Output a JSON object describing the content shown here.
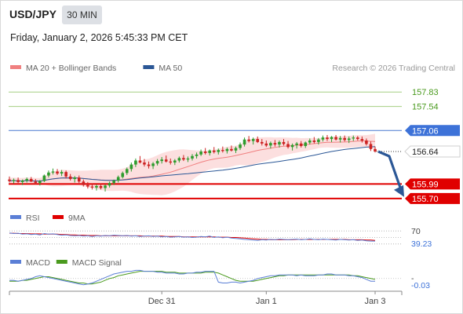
{
  "header": {
    "symbol": "USD/JPY",
    "timeframe": "30 MIN",
    "datetime": "Friday, January 2, 2026 5:45:33 PM CET"
  },
  "chart_data": {
    "type": "candlestick",
    "credit": "Research © 2026 Trading Central",
    "colors": {
      "bull": "#2e9c2e",
      "bear": "#cc2222",
      "ma20": "#f08080",
      "bollinger_fill": "#fbd9d9",
      "ma50": "#2b5796",
      "resistance": "#a6cf82",
      "pivot": "#4a78d0",
      "support": "#e00000",
      "arrow": "#2b5796",
      "rsi": "#5b7fd6",
      "rsi_9ma": "#e00000",
      "macd": "#5b7fd6",
      "macd_signal": "#4a9a1e"
    },
    "price_panel": {
      "legend": [
        {
          "label": "MA 20 + Bollinger Bands",
          "color": "#f08080"
        },
        {
          "label": "MA 50",
          "color": "#2b5796"
        }
      ],
      "ylim": [
        155.62,
        158.1
      ],
      "levels": [
        {
          "value": 157.83,
          "label": "157.83",
          "kind": "resistance"
        },
        {
          "value": 157.54,
          "label": "157.54",
          "kind": "resistance"
        },
        {
          "value": 157.06,
          "label": "157.06",
          "kind": "pivot"
        },
        {
          "value": 155.99,
          "label": "155.99",
          "kind": "support"
        },
        {
          "value": 155.7,
          "label": "155.70",
          "kind": "support"
        }
      ],
      "last_price": {
        "value": 156.64,
        "label": "156.64"
      },
      "forecast_arrow": {
        "from": 156.64,
        "to": 155.7
      },
      "candles": [
        [
          156.08,
          156.14,
          156.02,
          156.05
        ],
        [
          156.05,
          156.1,
          156.0,
          156.07
        ],
        [
          156.07,
          156.12,
          156.01,
          156.03
        ],
        [
          156.03,
          156.08,
          155.97,
          156.06
        ],
        [
          156.06,
          156.12,
          156.02,
          156.09
        ],
        [
          156.09,
          156.13,
          156.03,
          156.04
        ],
        [
          156.04,
          156.09,
          155.98,
          156.01
        ],
        [
          156.01,
          156.07,
          155.96,
          156.05
        ],
        [
          156.05,
          156.18,
          156.03,
          156.16
        ],
        [
          156.16,
          156.26,
          156.12,
          156.22
        ],
        [
          156.22,
          156.3,
          156.18,
          156.24
        ],
        [
          156.24,
          156.29,
          156.17,
          156.2
        ],
        [
          156.2,
          156.27,
          156.15,
          156.23
        ],
        [
          156.23,
          156.26,
          156.1,
          156.14
        ],
        [
          156.14,
          156.19,
          156.06,
          156.09
        ],
        [
          156.09,
          156.15,
          156.02,
          156.12
        ],
        [
          156.12,
          156.16,
          156.01,
          156.04
        ],
        [
          156.04,
          156.08,
          155.94,
          155.97
        ],
        [
          155.97,
          156.03,
          155.9,
          155.94
        ],
        [
          155.94,
          156.0,
          155.88,
          155.92
        ],
        [
          155.92,
          155.98,
          155.86,
          155.95
        ],
        [
          155.95,
          156.0,
          155.88,
          155.91
        ],
        [
          155.91,
          155.98,
          155.84,
          155.96
        ],
        [
          155.96,
          156.04,
          155.92,
          156.01
        ],
        [
          156.01,
          156.08,
          155.97,
          156.06
        ],
        [
          156.06,
          156.16,
          156.02,
          156.13
        ],
        [
          156.13,
          156.24,
          156.1,
          156.21
        ],
        [
          156.21,
          156.32,
          156.17,
          156.29
        ],
        [
          156.29,
          156.42,
          156.24,
          156.38
        ],
        [
          156.38,
          156.5,
          156.33,
          156.46
        ],
        [
          156.46,
          156.55,
          156.4,
          156.42
        ],
        [
          156.42,
          156.49,
          156.34,
          156.38
        ],
        [
          156.38,
          156.44,
          156.3,
          156.35
        ],
        [
          156.35,
          156.43,
          156.29,
          156.4
        ],
        [
          156.4,
          156.49,
          156.36,
          156.45
        ],
        [
          156.45,
          156.53,
          156.4,
          156.48
        ],
        [
          156.48,
          156.56,
          156.42,
          156.44
        ],
        [
          156.44,
          156.5,
          156.38,
          156.42
        ],
        [
          156.42,
          156.49,
          156.37,
          156.46
        ],
        [
          156.46,
          156.54,
          156.42,
          156.51
        ],
        [
          156.51,
          156.57,
          156.45,
          156.48
        ],
        [
          156.48,
          156.54,
          156.43,
          156.5
        ],
        [
          156.5,
          156.59,
          156.46,
          156.55
        ],
        [
          156.55,
          156.62,
          156.5,
          156.58
        ],
        [
          156.58,
          156.68,
          156.55,
          156.64
        ],
        [
          156.64,
          156.71,
          156.58,
          156.61
        ],
        [
          156.61,
          156.68,
          156.56,
          156.66
        ],
        [
          156.66,
          156.73,
          156.6,
          156.63
        ],
        [
          156.63,
          156.7,
          156.58,
          156.67
        ],
        [
          156.67,
          156.74,
          156.62,
          156.65
        ],
        [
          156.65,
          156.72,
          156.6,
          156.69
        ],
        [
          156.69,
          156.76,
          156.64,
          156.66
        ],
        [
          156.66,
          156.74,
          156.61,
          156.71
        ],
        [
          156.71,
          156.82,
          156.67,
          156.78
        ],
        [
          156.78,
          156.92,
          156.74,
          156.88
        ],
        [
          156.88,
          156.95,
          156.82,
          156.85
        ],
        [
          156.85,
          156.92,
          156.78,
          156.89
        ],
        [
          156.89,
          156.94,
          156.81,
          156.83
        ],
        [
          156.83,
          156.89,
          156.76,
          156.8
        ],
        [
          156.8,
          156.86,
          156.73,
          156.76
        ],
        [
          156.76,
          156.84,
          156.7,
          156.81
        ],
        [
          156.81,
          156.87,
          156.74,
          156.78
        ],
        [
          156.78,
          156.86,
          156.72,
          156.83
        ],
        [
          156.83,
          156.89,
          156.76,
          156.79
        ],
        [
          156.79,
          156.85,
          156.7,
          156.73
        ],
        [
          156.73,
          156.8,
          156.66,
          156.77
        ],
        [
          156.77,
          156.83,
          156.7,
          156.8
        ],
        [
          156.8,
          156.85,
          156.72,
          156.75
        ],
        [
          156.75,
          156.84,
          156.71,
          156.82
        ],
        [
          156.82,
          156.9,
          156.78,
          156.86
        ],
        [
          156.86,
          156.93,
          156.8,
          156.83
        ],
        [
          156.83,
          156.91,
          156.78,
          156.88
        ],
        [
          156.88,
          156.96,
          156.84,
          156.92
        ],
        [
          156.92,
          156.97,
          156.85,
          156.89
        ],
        [
          156.89,
          156.95,
          156.83,
          156.93
        ],
        [
          156.93,
          156.97,
          156.86,
          156.88
        ],
        [
          156.88,
          156.95,
          156.82,
          156.91
        ],
        [
          156.91,
          156.96,
          156.84,
          156.87
        ],
        [
          156.87,
          156.94,
          156.81,
          156.9
        ],
        [
          156.9,
          156.96,
          156.85,
          156.92
        ],
        [
          156.92,
          156.95,
          156.86,
          156.89
        ],
        [
          156.89,
          156.94,
          156.82,
          156.86
        ],
        [
          156.86,
          156.9,
          156.76,
          156.79
        ],
        [
          156.79,
          156.84,
          156.65,
          156.69
        ],
        [
          156.69,
          156.74,
          156.62,
          156.64
        ]
      ]
    },
    "rsi_panel": {
      "legend": [
        {
          "label": "RSI",
          "color": "#5b7fd6"
        },
        {
          "label": "9MA",
          "color": "#e00000"
        }
      ],
      "ylim": [
        20,
        80
      ],
      "reference_levels": [
        70,
        50,
        30
      ],
      "tick_label": "70",
      "last_value_label": "39.23",
      "rsi": [
        64,
        62,
        63,
        60,
        61,
        59,
        60,
        58,
        62,
        60,
        61,
        59,
        57,
        58,
        56,
        55,
        56,
        54,
        55,
        53,
        55,
        54,
        56,
        55,
        57,
        56,
        55,
        56,
        54,
        55,
        53,
        54,
        55,
        53,
        54,
        52,
        53,
        51,
        52,
        53,
        51,
        52,
        50,
        51,
        53,
        52,
        54,
        50,
        52,
        49,
        51,
        48,
        47,
        46,
        44,
        43,
        42,
        41,
        43,
        42,
        44,
        43,
        45,
        44,
        43,
        44,
        45,
        43,
        44,
        46,
        44,
        43,
        45,
        44,
        43,
        42,
        44,
        43,
        42,
        43,
        41,
        42,
        40,
        39,
        39
      ],
      "ma9": [
        63,
        63,
        62,
        62,
        62,
        61,
        61,
        61,
        60,
        60,
        60,
        60,
        59,
        59,
        58,
        58,
        57,
        57,
        56,
        56,
        56,
        55,
        55,
        55,
        55,
        55,
        55,
        55,
        55,
        55,
        55,
        54,
        54,
        54,
        54,
        54,
        53,
        53,
        53,
        53,
        52,
        52,
        52,
        52,
        52,
        52,
        52,
        52,
        51,
        51,
        51,
        50,
        50,
        49,
        48,
        47,
        46,
        45,
        44,
        44,
        43,
        43,
        43,
        43,
        43,
        43,
        44,
        44,
        44,
        44,
        44,
        44,
        44,
        44,
        44,
        44,
        44,
        44,
        43,
        43,
        43,
        43,
        42,
        42,
        41
      ]
    },
    "macd_panel": {
      "legend": [
        {
          "label": "MACD",
          "color": "#5b7fd6"
        },
        {
          "label": "MACD Signal",
          "color": "#4a9a1e"
        }
      ],
      "ylim": [
        -0.15,
        0.12
      ],
      "tick_label": "-",
      "last_value_label": "-0.03",
      "macd": [
        -0.02,
        -0.02,
        -0.03,
        -0.02,
        -0.01,
        0.0,
        0.02,
        0.03,
        0.02,
        0.01,
        0.0,
        -0.01,
        -0.02,
        -0.03,
        -0.04,
        -0.05,
        -0.06,
        -0.07,
        -0.06,
        -0.05,
        -0.03,
        -0.01,
        0.01,
        0.03,
        0.05,
        0.06,
        0.07,
        0.08,
        0.08,
        0.09,
        0.09,
        0.08,
        0.08,
        0.08,
        0.07,
        0.07,
        0.06,
        0.06,
        0.06,
        0.05,
        0.05,
        0.06,
        0.06,
        0.07,
        0.07,
        0.08,
        0.08,
        0.08,
        -0.04,
        -0.05,
        -0.05,
        -0.04,
        -0.04,
        -0.05,
        -0.04,
        -0.03,
        -0.02,
        0.0,
        0.01,
        0.02,
        0.03,
        0.03,
        0.04,
        0.04,
        0.04,
        0.04,
        0.03,
        0.04,
        0.03,
        0.03,
        0.03,
        0.04,
        0.04,
        0.05,
        0.05,
        0.04,
        0.04,
        0.04,
        0.03,
        0.03,
        0.02,
        0.01,
        -0.01,
        -0.03,
        -0.03
      ],
      "signal": [
        -0.03,
        -0.03,
        -0.03,
        -0.02,
        -0.02,
        -0.01,
        0.0,
        0.01,
        0.02,
        0.02,
        0.01,
        0.0,
        -0.01,
        -0.02,
        -0.03,
        -0.04,
        -0.05,
        -0.05,
        -0.06,
        -0.06,
        -0.05,
        -0.04,
        -0.02,
        0.0,
        0.01,
        0.03,
        0.04,
        0.05,
        0.06,
        0.07,
        0.08,
        0.08,
        0.08,
        0.08,
        0.08,
        0.08,
        0.07,
        0.07,
        0.07,
        0.06,
        0.06,
        0.06,
        0.06,
        0.06,
        0.06,
        0.07,
        0.07,
        0.07,
        0.06,
        0.04,
        0.02,
        0.0,
        -0.02,
        -0.03,
        -0.03,
        -0.03,
        -0.03,
        -0.02,
        -0.01,
        0.0,
        0.01,
        0.02,
        0.03,
        0.03,
        0.04,
        0.04,
        0.04,
        0.04,
        0.04,
        0.04,
        0.04,
        0.04,
        0.04,
        0.04,
        0.04,
        0.04,
        0.04,
        0.04,
        0.04,
        0.03,
        0.03,
        0.02,
        0.01,
        0.0,
        -0.01
      ]
    },
    "x_axis": {
      "labels": [
        {
          "label": "Dec 31",
          "index": 35
        },
        {
          "label": "Jan 1",
          "index": 59
        },
        {
          "label": "Jan 3",
          "index": 84
        }
      ]
    }
  }
}
